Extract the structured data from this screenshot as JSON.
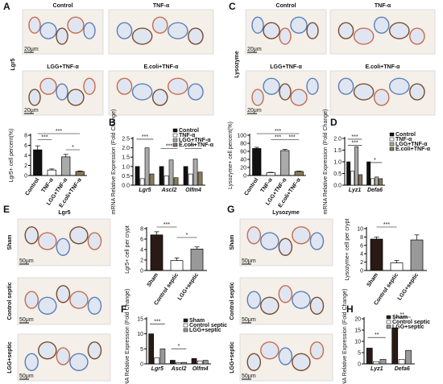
{
  "panel_labels": [
    "A",
    "B",
    "C",
    "D",
    "E",
    "F",
    "G",
    "H"
  ],
  "micrographs": [
    {
      "marker": "Lgr5",
      "scale": "20μm",
      "images": [
        "Control",
        "TNF-α",
        "LGG+TNF-α",
        "E.coli+TNF-α"
      ]
    },
    {
      "marker": "Lysozyme",
      "scale": "20μm",
      "images": [
        "Control",
        "TNF-α",
        "LGG+TNF-α",
        "E.coli+TNF-α"
      ]
    },
    {
      "marker": "Lgr5",
      "scale": "50μm",
      "images": [
        "Sham",
        "Control septic",
        "LGG+septic"
      ]
    },
    {
      "marker": "Lysozyme",
      "scale": "50μm",
      "images": [
        "Sham",
        "Control septic",
        "LGG+septic"
      ]
    }
  ],
  "chart_data": [
    {
      "type": "bar",
      "ylabel": "Lgr5+ cell percent(%)",
      "categories": [
        "Control",
        "TNF-α",
        "LGG+TNF-α",
        "E.coli+TNF-α"
      ],
      "values": [
        5.1,
        1.1,
        3.7,
        0.8
      ],
      "errors": [
        0.8,
        0.2,
        0.5,
        0.1
      ],
      "colors": [
        "#111111",
        "#ffffff",
        "#aaaaaa",
        "#8b7a5a"
      ],
      "ylim": [
        0,
        8
      ],
      "yticks": [
        0,
        2,
        4,
        6,
        8
      ],
      "annotations": [
        "***",
        "***",
        "*"
      ]
    },
    {
      "type": "grouped_bar",
      "ylabel": "mRNA Relative Expression (Fold Change)",
      "categories": [
        "Lgr5",
        "Ascl2",
        "Olfm4"
      ],
      "series": [
        {
          "name": "Control",
          "color": "#111111",
          "values": [
            1.0,
            1.0,
            1.0
          ]
        },
        {
          "name": "TNF-α",
          "color": "#ffffff",
          "values": [
            0.35,
            0.5,
            0.6
          ]
        },
        {
          "name": "LGG+TNF-α",
          "color": "#aaaaaa",
          "values": [
            2.0,
            1.35,
            1.4
          ]
        },
        {
          "name": "E.coli+TNF-α",
          "color": "#8b7a5a",
          "values": [
            0.6,
            0.4,
            0.7
          ]
        }
      ],
      "ylim": [
        0,
        2.5
      ],
      "yticks": [
        {
          "value": 0,
          "label": "0.0"
        },
        0.5,
        {
          "value": 1,
          "label": "1.0"
        },
        1.5,
        {
          "value": 2,
          "label": "2.0"
        },
        2.5
      ],
      "annotations": [
        "***",
        "***",
        "***"
      ]
    },
    {
      "type": "bar",
      "ylabel": "Lysozyme+ cell percent(%)",
      "categories": [
        "Control",
        "TNF-α",
        "LGG+TNF-α",
        "E.coli+TNF-α"
      ],
      "values": [
        67,
        7,
        62,
        10
      ],
      "errors": [
        3,
        1,
        3,
        1
      ],
      "colors": [
        "#111111",
        "#ffffff",
        "#aaaaaa",
        "#8b7a5a"
      ],
      "ylim": [
        0,
        100
      ],
      "yticks": [
        0,
        20,
        40,
        60,
        80,
        100
      ],
      "annotations": [
        "***",
        "***",
        "***"
      ]
    },
    {
      "type": "grouped_bar",
      "ylabel": "mRNA Relative Expression (Fold Change)",
      "categories": [
        "Lyz1",
        "Defa6"
      ],
      "series": [
        {
          "name": "Control",
          "color": "#111111",
          "values": [
            1.0,
            1.0
          ]
        },
        {
          "name": "TNF-α",
          "color": "#ffffff",
          "values": [
            0.6,
            0.28
          ]
        },
        {
          "name": "LGG+TNF-α",
          "color": "#aaaaaa",
          "values": [
            1.65,
            0.35
          ]
        },
        {
          "name": "E.coli+TNF-α",
          "color": "#8b7a5a",
          "values": [
            0.45,
            0.28
          ]
        }
      ],
      "ylim": [
        0,
        2
      ],
      "yticks": [
        {
          "value": 0,
          "label": "0.0"
        },
        0.5,
        {
          "value": 1,
          "label": "1.0"
        },
        1.5,
        {
          "value": 2,
          "label": "2.0"
        }
      ],
      "annotations": [
        "***",
        "***",
        "*"
      ]
    },
    {
      "type": "bar",
      "ylabel": "Lgr5+ cell per crypt",
      "categories": [
        "Sham",
        "Control septic",
        "LGG+septic"
      ],
      "values": [
        6.8,
        1.9,
        4.1
      ],
      "errors": [
        0.6,
        0.5,
        0.4
      ],
      "colors": [
        "#2a1a16",
        "#ffffff",
        "#999999"
      ],
      "ylim": [
        0,
        8
      ],
      "yticks": [
        0,
        2,
        4,
        6,
        8
      ],
      "annotations": [
        "***",
        "*"
      ]
    },
    {
      "type": "grouped_bar",
      "ylabel": "mRNA Relative Expression (Fold Change)",
      "categories": [
        "Lgr5",
        "Ascl2",
        "Olfm4"
      ],
      "series": [
        {
          "name": "Sham",
          "color": "#2a1a16",
          "values": [
            10,
            1.2,
            1.8
          ]
        },
        {
          "name": "Control septic",
          "color": "#ffffff",
          "values": [
            2,
            0.4,
            1.0
          ]
        },
        {
          "name": "LGG+septic",
          "color": "#999999",
          "values": [
            5,
            0.5,
            1.2
          ]
        }
      ],
      "ylim": [
        0,
        15
      ],
      "yticks": [
        0,
        5,
        10,
        15
      ],
      "annotations": [
        "***",
        "*"
      ]
    },
    {
      "type": "bar",
      "ylabel": "Lysozyme+ cell per crypt",
      "categories": [
        "Sham",
        "Control septic",
        "LGG+septic"
      ],
      "values": [
        7.5,
        1.8,
        7.3
      ],
      "errors": [
        0.5,
        0.6,
        1.2
      ],
      "colors": [
        "#2a1a16",
        "#ffffff",
        "#999999"
      ],
      "ylim": [
        0,
        10
      ],
      "yticks": [
        0,
        2,
        4,
        6,
        8,
        10
      ],
      "annotations": [
        "***"
      ]
    },
    {
      "type": "grouped_bar",
      "ylabel": "mRNA Relative Expression (Fold Change)",
      "categories": [
        "Lyz1",
        "Defa6"
      ],
      "series": [
        {
          "name": "Sham",
          "color": "#2a1a16",
          "values": [
            7,
            16
          ]
        },
        {
          "name": "Control septic",
          "color": "#ffffff",
          "values": [
            1,
            2
          ]
        },
        {
          "name": "LGG+septic",
          "color": "#999999",
          "values": [
            2,
            6
          ]
        }
      ],
      "ylim": [
        0,
        20
      ],
      "yticks": [
        0,
        5,
        10,
        15,
        20
      ],
      "annotations": [
        "**",
        "**"
      ]
    }
  ]
}
